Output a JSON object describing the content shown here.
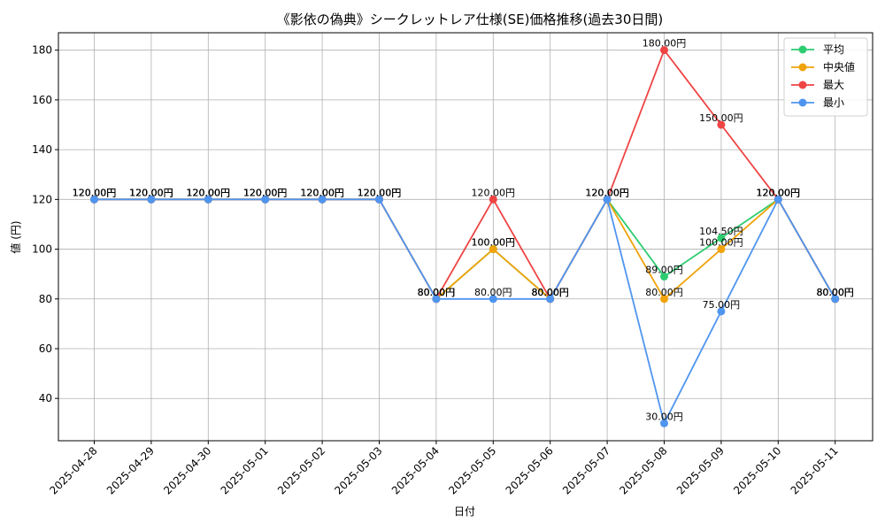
{
  "chart_data": {
    "type": "line",
    "title": "《影依の偽典》シークレットレア仕様(SE)価格推移(過去30日間)",
    "xlabel": "日付",
    "ylabel": "値 (円)",
    "ylim": [
      23,
      187
    ],
    "yticks": [
      40,
      60,
      80,
      100,
      120,
      140,
      160,
      180
    ],
    "grid": true,
    "legend_position": "top-right",
    "categories": [
      "2025-04-28",
      "2025-04-29",
      "2025-04-30",
      "2025-05-01",
      "2025-05-02",
      "2025-05-03",
      "2025-05-04",
      "2025-05-05",
      "2025-05-06",
      "2025-05-07",
      "2025-05-08",
      "2025-05-09",
      "2025-05-10",
      "2025-05-11"
    ],
    "series": [
      {
        "name": "平均",
        "color": "#2ecc71",
        "values": [
          120,
          120,
          120,
          120,
          120,
          120,
          80,
          100,
          80,
          120,
          89,
          104.5,
          120,
          80
        ]
      },
      {
        "name": "中央値",
        "color": "#f0a30a",
        "values": [
          120,
          120,
          120,
          120,
          120,
          120,
          80,
          100,
          80,
          120,
          80,
          100,
          120,
          80
        ]
      },
      {
        "name": "最大",
        "color": "#ef4444",
        "values": [
          120,
          120,
          120,
          120,
          120,
          120,
          80,
          120,
          80,
          120,
          180,
          150,
          120,
          80
        ]
      },
      {
        "name": "最小",
        "color": "#4f95f0",
        "values": [
          120,
          120,
          120,
          120,
          120,
          120,
          80,
          80,
          80,
          120,
          30,
          75,
          120,
          80
        ]
      }
    ],
    "data_label_suffix": "円"
  }
}
